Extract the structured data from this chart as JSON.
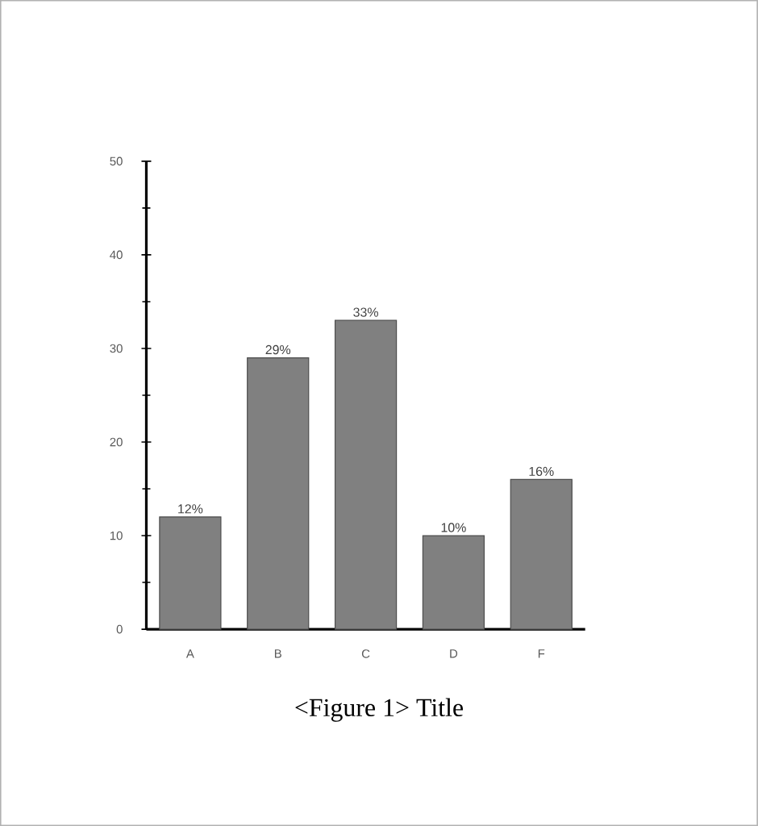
{
  "chart_data": {
    "type": "bar",
    "categories": [
      "A",
      "B",
      "C",
      "D",
      "F"
    ],
    "values": [
      12,
      29,
      33,
      10,
      16
    ],
    "value_labels": [
      "12%",
      "29%",
      "33%",
      "10%",
      "16%"
    ],
    "color": "#808080",
    "ylim": [
      0,
      50
    ],
    "yticks": [
      0,
      10,
      20,
      30,
      40,
      50
    ],
    "annotations": [
      "<Figure 1>  Title"
    ]
  }
}
